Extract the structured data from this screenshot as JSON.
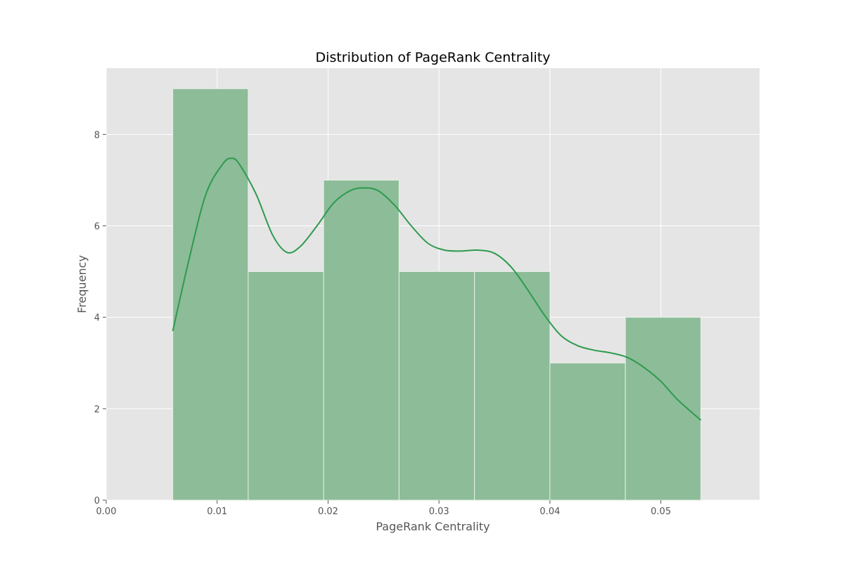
{
  "chart_data": {
    "type": "bar",
    "subtype": "histogram-with-kde",
    "title": "Distribution of PageRank Centrality",
    "xlabel": "PageRank Centrality",
    "ylabel": "Frequency",
    "xlim": [
      0.0,
      0.0589
    ],
    "ylim": [
      0,
      9.45
    ],
    "xticks": [
      0.0,
      0.01,
      0.02,
      0.03,
      0.04,
      0.05
    ],
    "xtick_labels": [
      "0.00",
      "0.01",
      "0.02",
      "0.03",
      "0.04",
      "0.05"
    ],
    "yticks": [
      0,
      2,
      4,
      6,
      8
    ],
    "ytick_labels": [
      "0",
      "2",
      "4",
      "6",
      "8"
    ],
    "grid": true,
    "bin_edges": [
      0.006,
      0.0128,
      0.0196,
      0.0264,
      0.0332,
      0.04,
      0.0468,
      0.0536
    ],
    "counts": [
      9,
      5,
      7,
      5,
      5,
      3,
      4
    ],
    "kde": {
      "x": [
        0.006,
        0.0075,
        0.009,
        0.0105,
        0.0113,
        0.012,
        0.0135,
        0.015,
        0.0163,
        0.0175,
        0.019,
        0.0205,
        0.022,
        0.0232,
        0.0245,
        0.026,
        0.0275,
        0.029,
        0.0305,
        0.032,
        0.0335,
        0.035,
        0.0365,
        0.038,
        0.0395,
        0.041,
        0.0425,
        0.044,
        0.0455,
        0.047,
        0.0485,
        0.05,
        0.0515,
        0.0536
      ],
      "y": [
        3.7,
        5.3,
        6.7,
        7.35,
        7.48,
        7.35,
        6.7,
        5.8,
        5.42,
        5.55,
        6.0,
        6.5,
        6.77,
        6.83,
        6.77,
        6.45,
        6.0,
        5.62,
        5.47,
        5.45,
        5.47,
        5.4,
        5.1,
        4.6,
        4.05,
        3.6,
        3.38,
        3.28,
        3.22,
        3.12,
        2.9,
        2.6,
        2.2,
        1.75
      ]
    },
    "colors": {
      "bar_fill": "#8cbc98",
      "bar_edge": "#e8efe9",
      "kde_line": "#2e9a4e",
      "plot_bg": "#e5e5e5",
      "grid": "#ffffff"
    }
  }
}
